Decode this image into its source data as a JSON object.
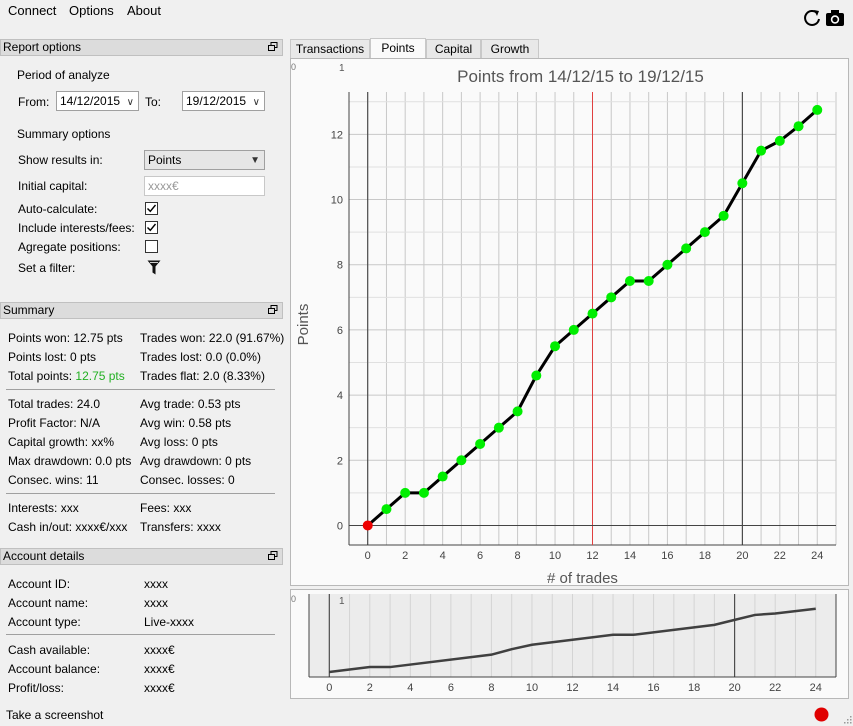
{
  "menu": {
    "items": [
      "Connect",
      "Options",
      "About"
    ]
  },
  "toolbar": {
    "refresh_icon": "refresh-icon",
    "screenshot_icon": "camera-icon"
  },
  "report_options": {
    "header": "Report options",
    "period_label": "Period of analyze",
    "from_label": "From:",
    "from_value": "14/12/2015",
    "to_label": "To:",
    "to_value": "19/12/2015",
    "summary_options_label": "Summary options",
    "show_results_label": "Show results in:",
    "show_results_value": "Points",
    "initial_capital_label": "Initial capital:",
    "initial_capital_placeholder": "xxxx€",
    "auto_calc_label": "Auto-calculate:",
    "auto_calc_checked": true,
    "interests_label": "Include interests/fees:",
    "interests_checked": true,
    "aggregate_label": "Agregate positions:",
    "aggregate_checked": false,
    "filter_label": "Set a filter:"
  },
  "summary": {
    "header": "Summary",
    "points_won": "Points won: 12.75 pts",
    "trades_won": "Trades won: 22.0 (91.67%)",
    "points_lost": "Points lost: 0 pts",
    "trades_lost": "Trades lost: 0.0 (0.0%)",
    "total_points_label": "Total points:",
    "total_points_value": "12.75 pts",
    "trades_flat": "Trades flat: 2.0 (8.33%)",
    "total_trades": "Total trades: 24.0",
    "avg_trade": "Avg trade: 0.53 pts",
    "profit_factor": "Profit Factor: N/A",
    "avg_win": "Avg win: 0.58 pts",
    "capital_growth": "Capital growth: xx%",
    "avg_loss": "Avg loss: 0 pts",
    "max_drawdown": "Max drawdown: 0.0 pts",
    "avg_drawdown": "Avg drawdown: 0 pts",
    "consec_wins": "Consec. wins: 11",
    "consec_losses": "Consec. losses: 0",
    "interests": "Interests: xxx",
    "fees": "Fees: xxx",
    "cash_inout": "Cash in/out: xxxx€/xxx",
    "transfers": "Transfers: xxxx",
    "positive_color": "#22b022"
  },
  "account": {
    "header": "Account details",
    "id_label": "Account ID:",
    "id_value": "xxxx",
    "name_label": "Account name:",
    "name_value": "xxxx",
    "type_label": "Account type:",
    "type_value": "Live-xxxx",
    "cash_label": "Cash available:",
    "cash_value": "xxxx€",
    "balance_label": "Account balance:",
    "balance_value": "xxxx€",
    "pl_label": "Profit/loss:",
    "pl_value": "xxxx€"
  },
  "tabs": [
    "Transactions",
    "Points",
    "Capital",
    "Growth"
  ],
  "active_tab": "Points",
  "status": {
    "text": "Take a screenshot",
    "indicator_color": "#e00000"
  },
  "chart_data": [
    {
      "type": "line",
      "title": "Points from 14/12/15 to 19/12/15",
      "xlabel": "# of trades",
      "ylabel": "Points",
      "corner_labels": [
        "0",
        "1"
      ],
      "x": [
        0,
        1,
        2,
        3,
        4,
        5,
        6,
        7,
        8,
        9,
        10,
        11,
        12,
        13,
        14,
        15,
        16,
        17,
        18,
        19,
        20,
        21,
        22,
        23,
        24
      ],
      "y": [
        0,
        0.5,
        1.0,
        1.0,
        1.5,
        2.0,
        2.5,
        3.0,
        3.5,
        4.6,
        5.5,
        6.0,
        6.5,
        7.0,
        7.5,
        7.5,
        8.0,
        8.5,
        9.0,
        9.5,
        10.5,
        11.5,
        11.8,
        12.25,
        12.75
      ],
      "xlim": [
        -1,
        25
      ],
      "ylim": [
        -0.6,
        13.3
      ],
      "xticks": [
        0,
        2,
        4,
        6,
        8,
        10,
        12,
        14,
        16,
        18,
        20,
        22,
        24
      ],
      "yticks": [
        0,
        2,
        4,
        6,
        8,
        10,
        12
      ],
      "marker_color": "#00ee00",
      "first_marker_color": "#ee0000",
      "line_color": "#000000",
      "cursor_x": 12,
      "cursor_color": "#e04040",
      "vlines": [
        0,
        20
      ]
    },
    {
      "type": "line",
      "title": "",
      "corner_labels": [
        "0",
        "1"
      ],
      "x": [
        0,
        2,
        3,
        8,
        9,
        10,
        14,
        15,
        19,
        20,
        21,
        22,
        24
      ],
      "y": [
        0,
        1.0,
        1.0,
        3.5,
        4.6,
        5.5,
        7.5,
        7.5,
        9.5,
        10.5,
        11.5,
        11.8,
        12.75
      ],
      "xlim": [
        -1,
        25
      ],
      "ylim": [
        -0.6,
        13.3
      ],
      "xticks": [
        0,
        2,
        4,
        6,
        8,
        10,
        12,
        14,
        16,
        18,
        20,
        22,
        24
      ],
      "line_color": "#404040",
      "vlines": [
        0,
        20
      ]
    }
  ]
}
